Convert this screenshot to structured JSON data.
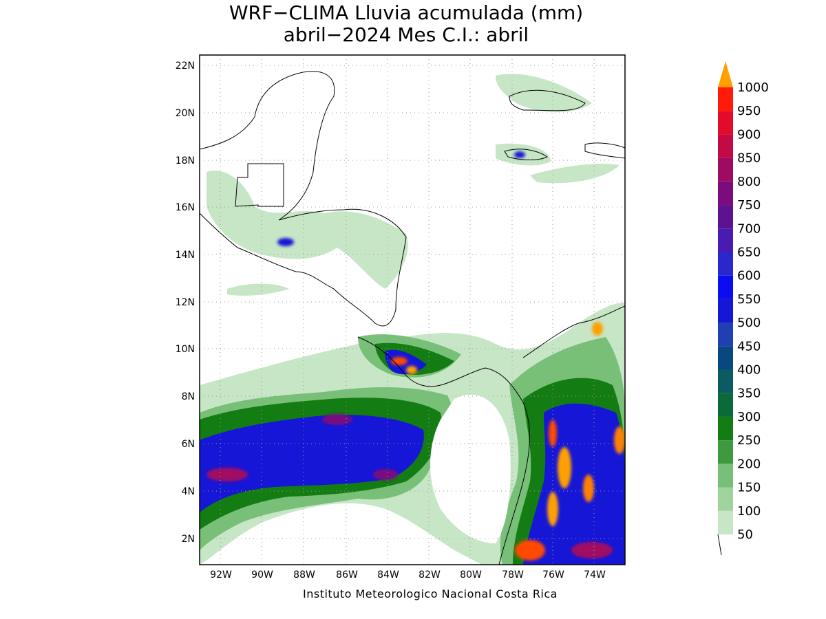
{
  "title": {
    "line1": "WRF−CLIMA Lluvia acumulada (mm)",
    "line2": "abril−2024 Mes C.I.: abril"
  },
  "credit": "Instituto Meteorologico Nacional Costa Rica",
  "lon_labels": [
    "92W",
    "90W",
    "88W",
    "86W",
    "84W",
    "82W",
    "80W",
    "78W",
    "76W",
    "74W"
  ],
  "lat_labels": [
    "22N",
    "20N",
    "18N",
    "16N",
    "14N",
    "12N",
    "10N",
    "8N",
    "6N",
    "4N",
    "2N"
  ],
  "colorbar": {
    "levels": [
      "50",
      "100",
      "150",
      "200",
      "250",
      "300",
      "350",
      "400",
      "450",
      "500",
      "550",
      "600",
      "650",
      "700",
      "750",
      "800",
      "850",
      "900",
      "950",
      "1000"
    ],
    "colors": [
      "#c7e6c6",
      "#9fd49f",
      "#78bf78",
      "#3f9a3f",
      "#137c13",
      "#0a6a3a",
      "#0c5a62",
      "#08477f",
      "#1f3fb3",
      "#1616d6",
      "#0c0cf0",
      "#2828cc",
      "#4a1bb0",
      "#5e1190",
      "#7a0c7e",
      "#a00b62",
      "#c40a45",
      "#e20c2a",
      "#ff1a0a",
      "#ff4a00",
      "#ff8000",
      "#ffa000"
    ],
    "arrow_top_color": "#ffa000"
  },
  "map_extent": {
    "lon_min": -93.2,
    "lon_max": -72.4,
    "lat_min": 1.0,
    "lat_max": 22.4
  }
}
